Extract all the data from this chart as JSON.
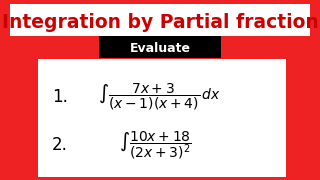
{
  "title": "Integration by Partial fraction",
  "subtitle": "Evaluate",
  "bg_color": "#EE2222",
  "title_bg": "#FFFFFF",
  "title_color": "#CC0000",
  "subtitle_color": "#FFFFFF",
  "box_color": "#FFFFFF",
  "item1_number": "1.",
  "item2_number": "2.",
  "fig_width": 3.2,
  "fig_height": 1.8,
  "dpi": 100
}
